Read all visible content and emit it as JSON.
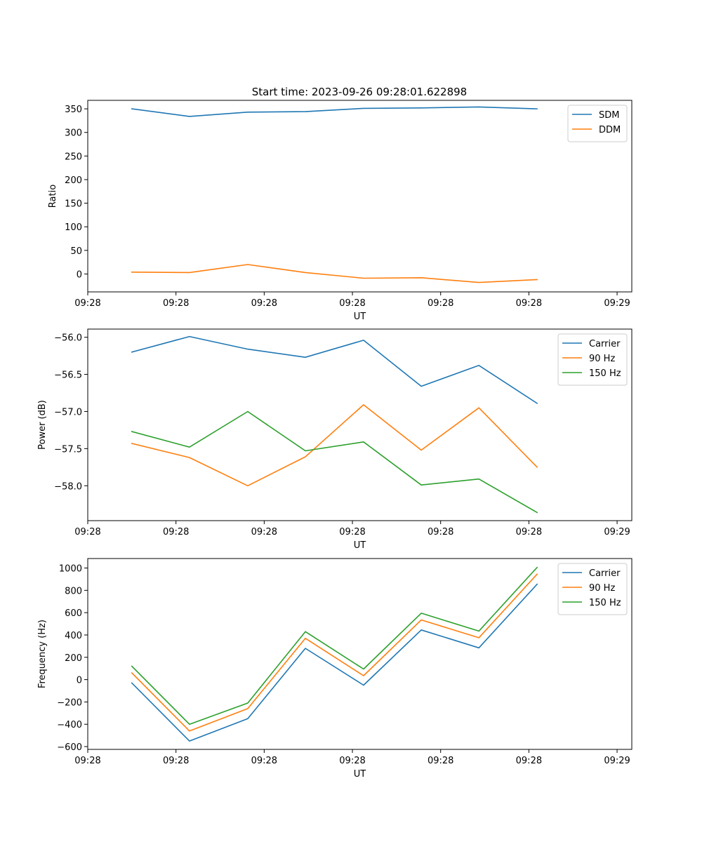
{
  "figure": {
    "title": "Start time: 2023-09-26 09:28:01.622898"
  },
  "colors": {
    "blue": "#1f77b4",
    "orange": "#ff7f0e",
    "green": "#2ca02c",
    "axes": "#000000",
    "background": "#ffffff",
    "legend_border": "#cccccc"
  },
  "chart_data": [
    {
      "type": "line",
      "name": "ratio-chart",
      "title": "Start time: 2023-09-26 09:28:01.622898",
      "xlabel": "UT",
      "ylabel": "Ratio",
      "xlim": [
        0,
        9.25
      ],
      "ylim": [
        -38,
        368
      ],
      "x_ticks": [
        0,
        1.5,
        3,
        4.5,
        6,
        7.5,
        9
      ],
      "x_tick_labels": [
        "09:28",
        "09:28",
        "09:28",
        "09:28",
        "09:28",
        "09:28",
        "09:29"
      ],
      "y_ticks": [
        350,
        300,
        250,
        200,
        150,
        100,
        50,
        0
      ],
      "y_tick_labels": [
        "350",
        "300",
        "250",
        "200",
        "150",
        "100",
        "50",
        "0"
      ],
      "x": [
        0.75,
        1.73,
        2.72,
        3.7,
        4.69,
        5.67,
        6.65,
        7.64
      ],
      "legend": "top-right",
      "series": [
        {
          "name": "SDM",
          "color": "#1f77b4",
          "values": [
            350,
            334,
            343,
            344,
            351,
            352,
            354,
            350
          ]
        },
        {
          "name": "DDM",
          "color": "#ff7f0e",
          "values": [
            4,
            3,
            20,
            3,
            -9,
            -8,
            -18,
            -12
          ]
        }
      ]
    },
    {
      "type": "line",
      "name": "power-chart",
      "xlabel": "UT",
      "ylabel": "Power (dB)",
      "xlim": [
        0,
        9.25
      ],
      "ylim": [
        -58.47,
        -55.89
      ],
      "x_ticks": [
        0,
        1.5,
        3,
        4.5,
        6,
        7.5,
        9
      ],
      "x_tick_labels": [
        "09:28",
        "09:28",
        "09:28",
        "09:28",
        "09:28",
        "09:28",
        "09:29"
      ],
      "y_ticks": [
        -56.0,
        -56.5,
        -57.0,
        -57.5,
        -58.0
      ],
      "y_tick_labels": [
        "−56.0",
        "−56.5",
        "−57.0",
        "−57.5",
        "−58.0"
      ],
      "x": [
        0.75,
        1.73,
        2.72,
        3.7,
        4.69,
        5.67,
        6.65,
        7.64
      ],
      "legend": "top-right",
      "series": [
        {
          "name": "Carrier",
          "color": "#1f77b4",
          "values": [
            -56.2,
            -55.99,
            -56.16,
            -56.27,
            -56.04,
            -56.66,
            -56.38,
            -56.89
          ]
        },
        {
          "name": "90 Hz",
          "color": "#ff7f0e",
          "values": [
            -57.43,
            -57.62,
            -58.0,
            -57.61,
            -56.91,
            -57.52,
            -56.95,
            -57.75
          ]
        },
        {
          "name": "150 Hz",
          "color": "#2ca02c",
          "values": [
            -57.27,
            -57.48,
            -57.0,
            -57.53,
            -57.41,
            -57.99,
            -57.91,
            -58.36
          ]
        }
      ]
    },
    {
      "type": "line",
      "name": "frequency-chart",
      "xlabel": "UT",
      "ylabel": "Frequency (Hz)",
      "xlim": [
        0,
        9.25
      ],
      "ylim": [
        -625,
        1085
      ],
      "x_ticks": [
        0,
        1.5,
        3,
        4.5,
        6,
        7.5,
        9
      ],
      "x_tick_labels": [
        "09:28",
        "09:28",
        "09:28",
        "09:28",
        "09:28",
        "09:28",
        "09:29"
      ],
      "y_ticks": [
        1000,
        800,
        600,
        400,
        200,
        0,
        -200,
        -400,
        -600
      ],
      "y_tick_labels": [
        "1000",
        "800",
        "600",
        "400",
        "200",
        "0",
        "−200",
        "−400",
        "−600"
      ],
      "x": [
        0.75,
        1.73,
        2.72,
        3.7,
        4.69,
        5.67,
        6.65,
        7.64
      ],
      "legend": "top-right",
      "series": [
        {
          "name": "Carrier",
          "color": "#1f77b4",
          "values": [
            -30,
            -550,
            -350,
            280,
            -50,
            445,
            285,
            855
          ]
        },
        {
          "name": "90 Hz",
          "color": "#ff7f0e",
          "values": [
            60,
            -460,
            -260,
            370,
            35,
            535,
            375,
            945
          ]
        },
        {
          "name": "150 Hz",
          "color": "#2ca02c",
          "values": [
            120,
            -400,
            -210,
            430,
            95,
            595,
            435,
            1005
          ]
        }
      ]
    }
  ]
}
